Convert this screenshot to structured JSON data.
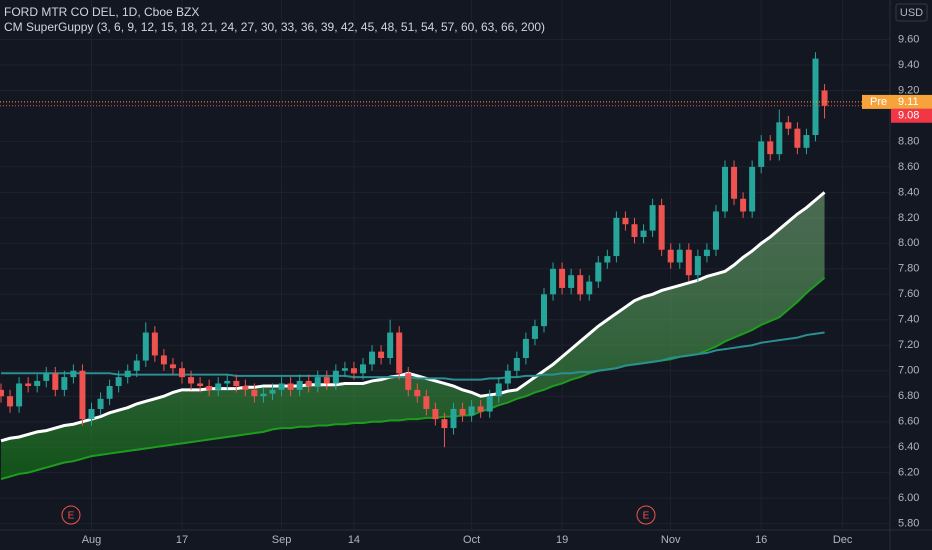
{
  "chart_data": {
    "type": "candlestick",
    "title": "FORD MTR CO DEL, 1D, Cboe BZX",
    "subtitle": "CM SuperGuppy (3, 6, 9, 12, 15, 18, 21, 24, 27, 30, 33, 36, 39, 42, 45, 48, 51, 54, 57, 60, 63, 66, 200)",
    "currency": "USD",
    "earnings_label": "E",
    "up_color": "#26a69a",
    "down_color": "#ef5350",
    "categories": [
      null,
      null,
      null,
      null,
      null,
      null,
      null,
      null,
      null,
      null,
      "Aug",
      null,
      null,
      null,
      null,
      null,
      null,
      null,
      null,
      null,
      "17",
      null,
      null,
      null,
      null,
      null,
      null,
      null,
      null,
      null,
      null,
      "Sep",
      null,
      null,
      null,
      null,
      null,
      null,
      null,
      "14",
      null,
      null,
      null,
      null,
      null,
      null,
      null,
      null,
      null,
      null,
      null,
      null,
      "Oct",
      null,
      null,
      null,
      null,
      null,
      null,
      null,
      null,
      null,
      "19",
      null,
      null,
      null,
      null,
      null,
      null,
      null,
      null,
      null,
      null,
      null,
      "Nov",
      null,
      null,
      null,
      null,
      null,
      null,
      null,
      null,
      null,
      "16",
      null,
      null,
      null,
      null,
      null,
      null,
      null,
      null,
      "Dec"
    ],
    "open": [
      6.85,
      6.8,
      6.72,
      6.9,
      6.88,
      6.92,
      6.98,
      6.85,
      6.95,
      7.0,
      6.62,
      6.7,
      6.78,
      6.88,
      6.95,
      7.0,
      7.08,
      7.3,
      7.12,
      7.05,
      7.02,
      6.95,
      6.9,
      6.88,
      6.85,
      6.9,
      6.92,
      6.88,
      6.85,
      6.8,
      6.82,
      6.85,
      6.9,
      6.85,
      6.92,
      6.88,
      6.95,
      6.9,
      7.0,
      7.02,
      6.98,
      7.05,
      7.15,
      7.1,
      7.3,
      6.98,
      6.85,
      6.8,
      6.7,
      6.62,
      6.55,
      6.7,
      6.65,
      6.72,
      6.68,
      6.8,
      6.9,
      7.0,
      7.1,
      7.25,
      7.35,
      7.6,
      7.8,
      7.65,
      7.75,
      7.6,
      7.7,
      7.85,
      7.9,
      8.2,
      8.15,
      8.05,
      8.1,
      8.3,
      7.95,
      7.85,
      7.95,
      7.75,
      7.9,
      7.95,
      8.25,
      8.6,
      8.35,
      8.25,
      8.6,
      8.8,
      8.7,
      8.95,
      8.9,
      8.75,
      8.85,
      9.2,
      null,
      null
    ],
    "high": [
      6.9,
      6.85,
      6.95,
      6.95,
      6.97,
      7.03,
      7.03,
      7.0,
      7.05,
      7.05,
      6.75,
      6.83,
      6.93,
      7.0,
      7.05,
      7.13,
      7.38,
      7.35,
      7.17,
      7.1,
      7.07,
      7.0,
      6.95,
      6.93,
      6.95,
      6.97,
      6.97,
      6.93,
      6.9,
      6.87,
      6.9,
      6.95,
      6.95,
      6.97,
      6.97,
      7.0,
      7.0,
      7.05,
      7.07,
      7.07,
      7.1,
      7.2,
      7.2,
      7.4,
      7.35,
      7.03,
      6.9,
      6.85,
      6.75,
      6.67,
      6.75,
      6.75,
      6.77,
      6.77,
      6.85,
      6.95,
      7.05,
      7.15,
      7.3,
      7.4,
      7.65,
      7.85,
      7.85,
      7.8,
      7.8,
      7.75,
      7.9,
      7.95,
      8.25,
      8.25,
      8.2,
      8.15,
      8.35,
      8.35,
      8.0,
      8.0,
      8.0,
      7.95,
      8.0,
      8.3,
      8.65,
      8.65,
      8.4,
      8.65,
      8.85,
      8.85,
      9.05,
      9.0,
      8.95,
      8.9,
      9.5,
      9.25,
      null,
      null
    ],
    "low": [
      6.75,
      6.67,
      6.67,
      6.83,
      6.83,
      6.87,
      6.8,
      6.8,
      6.9,
      6.57,
      6.57,
      6.65,
      6.73,
      6.83,
      6.9,
      6.95,
      7.03,
      7.07,
      7.0,
      6.97,
      6.9,
      6.85,
      6.83,
      6.8,
      6.8,
      6.85,
      6.83,
      6.8,
      6.75,
      6.75,
      6.77,
      6.8,
      6.8,
      6.8,
      6.83,
      6.83,
      6.85,
      6.85,
      6.95,
      6.93,
      6.93,
      7.0,
      7.05,
      7.05,
      6.93,
      6.8,
      6.75,
      6.65,
      6.57,
      6.4,
      6.5,
      6.6,
      6.6,
      6.63,
      6.63,
      6.75,
      6.85,
      6.95,
      7.05,
      7.2,
      7.3,
      7.55,
      7.6,
      7.6,
      7.55,
      7.55,
      7.65,
      7.8,
      7.85,
      8.1,
      8.0,
      8.0,
      8.05,
      7.9,
      7.8,
      7.8,
      7.7,
      7.7,
      7.85,
      7.9,
      8.2,
      8.3,
      8.2,
      8.2,
      8.55,
      8.65,
      8.65,
      8.85,
      8.7,
      8.7,
      8.8,
      8.98,
      null,
      null
    ],
    "close": [
      6.8,
      6.72,
      6.9,
      6.88,
      6.92,
      6.98,
      6.85,
      6.95,
      7.0,
      6.62,
      6.7,
      6.78,
      6.88,
      6.95,
      7.0,
      7.08,
      7.3,
      7.12,
      7.05,
      7.02,
      6.95,
      6.9,
      6.88,
      6.85,
      6.9,
      6.92,
      6.88,
      6.85,
      6.8,
      6.82,
      6.85,
      6.9,
      6.85,
      6.92,
      6.88,
      6.95,
      6.9,
      7.0,
      7.02,
      6.98,
      7.05,
      7.15,
      7.1,
      7.3,
      6.98,
      6.85,
      6.8,
      6.7,
      6.62,
      6.55,
      6.7,
      6.65,
      6.72,
      6.68,
      6.8,
      6.9,
      7.0,
      7.1,
      7.25,
      7.35,
      7.6,
      7.8,
      7.65,
      7.75,
      7.6,
      7.7,
      7.85,
      7.9,
      8.2,
      8.15,
      8.05,
      8.1,
      8.3,
      7.95,
      7.85,
      7.95,
      7.75,
      7.9,
      7.95,
      8.25,
      8.6,
      8.35,
      8.25,
      8.6,
      8.8,
      8.7,
      8.95,
      8.9,
      8.75,
      8.85,
      9.45,
      9.08,
      null,
      null
    ],
    "lines": [
      {
        "color": "#ffffff",
        "values": [
          6.45,
          6.47,
          6.48,
          6.5,
          6.52,
          6.53,
          6.55,
          6.57,
          6.58,
          6.6,
          6.62,
          6.64,
          6.67,
          6.69,
          6.71,
          6.74,
          6.76,
          6.78,
          6.8,
          6.83,
          6.85,
          6.85,
          6.85,
          6.86,
          6.86,
          6.86,
          6.86,
          6.87,
          6.87,
          6.88,
          6.88,
          6.88,
          6.88,
          6.88,
          6.89,
          6.89,
          6.89,
          6.89,
          6.9,
          6.9,
          6.9,
          6.92,
          6.93,
          6.95,
          6.96,
          6.98,
          6.96,
          6.94,
          6.92,
          6.9,
          6.88,
          6.85,
          6.83,
          6.8,
          6.81,
          6.82,
          6.84,
          6.85,
          6.9,
          6.95,
          7.0,
          7.05,
          7.11,
          7.17,
          7.23,
          7.29,
          7.35,
          7.4,
          7.45,
          7.5,
          7.55,
          7.58,
          7.6,
          7.63,
          7.65,
          7.67,
          7.69,
          7.71,
          7.74,
          7.76,
          7.78,
          7.83,
          7.89,
          7.94,
          8.0,
          8.05,
          8.11,
          8.17,
          8.23,
          8.28,
          8.34,
          8.4,
          null,
          null
        ]
      },
      {
        "color": "#1e9c1e",
        "values": [
          6.15,
          6.17,
          6.19,
          6.2,
          6.22,
          6.24,
          6.26,
          6.28,
          6.29,
          6.31,
          6.33,
          6.34,
          6.35,
          6.36,
          6.37,
          6.38,
          6.39,
          6.4,
          6.41,
          6.42,
          6.43,
          6.44,
          6.45,
          6.46,
          6.47,
          6.48,
          6.49,
          6.5,
          6.51,
          6.52,
          6.54,
          6.55,
          6.55,
          6.56,
          6.56,
          6.57,
          6.57,
          6.58,
          6.58,
          6.59,
          6.59,
          6.6,
          6.6,
          6.61,
          6.61,
          6.62,
          6.62,
          6.63,
          6.63,
          6.64,
          6.64,
          6.65,
          6.65,
          6.68,
          6.7,
          6.73,
          6.75,
          6.78,
          6.8,
          6.83,
          6.85,
          6.88,
          6.9,
          6.93,
          6.95,
          6.98,
          7.0,
          7.01,
          7.02,
          7.04,
          7.05,
          7.06,
          7.07,
          7.08,
          7.09,
          7.11,
          7.12,
          7.13,
          7.16,
          7.19,
          7.23,
          7.26,
          7.29,
          7.32,
          7.36,
          7.39,
          7.42,
          7.48,
          7.54,
          7.61,
          7.67,
          7.73,
          null,
          null
        ]
      },
      {
        "color": "#2b8f91",
        "values": [
          6.98,
          6.98,
          6.98,
          6.98,
          6.98,
          6.98,
          6.98,
          6.98,
          6.98,
          6.98,
          6.98,
          6.98,
          6.98,
          6.97,
          6.97,
          6.97,
          6.97,
          6.97,
          6.97,
          6.97,
          6.97,
          6.97,
          6.97,
          6.97,
          6.97,
          6.97,
          6.96,
          6.96,
          6.96,
          6.96,
          6.96,
          6.96,
          6.96,
          6.96,
          6.96,
          6.96,
          6.96,
          6.96,
          6.96,
          6.95,
          6.95,
          6.95,
          6.95,
          6.95,
          6.95,
          6.95,
          6.94,
          6.94,
          6.94,
          6.94,
          6.93,
          6.93,
          6.93,
          6.93,
          6.94,
          6.94,
          6.95,
          6.95,
          6.96,
          6.96,
          6.97,
          6.97,
          6.98,
          6.98,
          6.99,
          6.99,
          7.0,
          7.01,
          7.02,
          7.04,
          7.05,
          7.06,
          7.07,
          7.08,
          7.1,
          7.11,
          7.12,
          7.13,
          7.14,
          7.16,
          7.17,
          7.18,
          7.19,
          7.2,
          7.22,
          7.23,
          7.24,
          7.25,
          7.26,
          7.28,
          7.29,
          7.3,
          null,
          null
        ]
      }
    ],
    "last_price": 9.08,
    "pre_market": {
      "label": "Pre",
      "value": 9.11
    },
    "ylim": [
      5.75,
      9.91
    ],
    "yticks": [
      {
        "value": 5.8,
        "label": "5.80"
      },
      {
        "value": 6.0,
        "label": "6.00"
      },
      {
        "value": 6.2,
        "label": "6.20"
      },
      {
        "value": 6.4,
        "label": "6.40"
      },
      {
        "value": 6.6,
        "label": "6.60"
      },
      {
        "value": 6.8,
        "label": "6.80"
      },
      {
        "value": 7.0,
        "label": "7.00"
      },
      {
        "value": 7.2,
        "label": "7.20"
      },
      {
        "value": 7.4,
        "label": "7.40"
      },
      {
        "value": 7.6,
        "label": "7.60"
      },
      {
        "value": 7.8,
        "label": "7.80"
      },
      {
        "value": 8.0,
        "label": "8.00"
      },
      {
        "value": 8.2,
        "label": "8.20"
      },
      {
        "value": 8.4,
        "label": "8.40"
      },
      {
        "value": 8.6,
        "label": "8.60"
      },
      {
        "value": 8.8,
        "label": "8.80"
      },
      {
        "value": 9.2,
        "label": "9.20"
      },
      {
        "value": 9.4,
        "label": "9.40"
      },
      {
        "value": 9.6,
        "label": "9.60"
      }
    ],
    "grid": true
  }
}
